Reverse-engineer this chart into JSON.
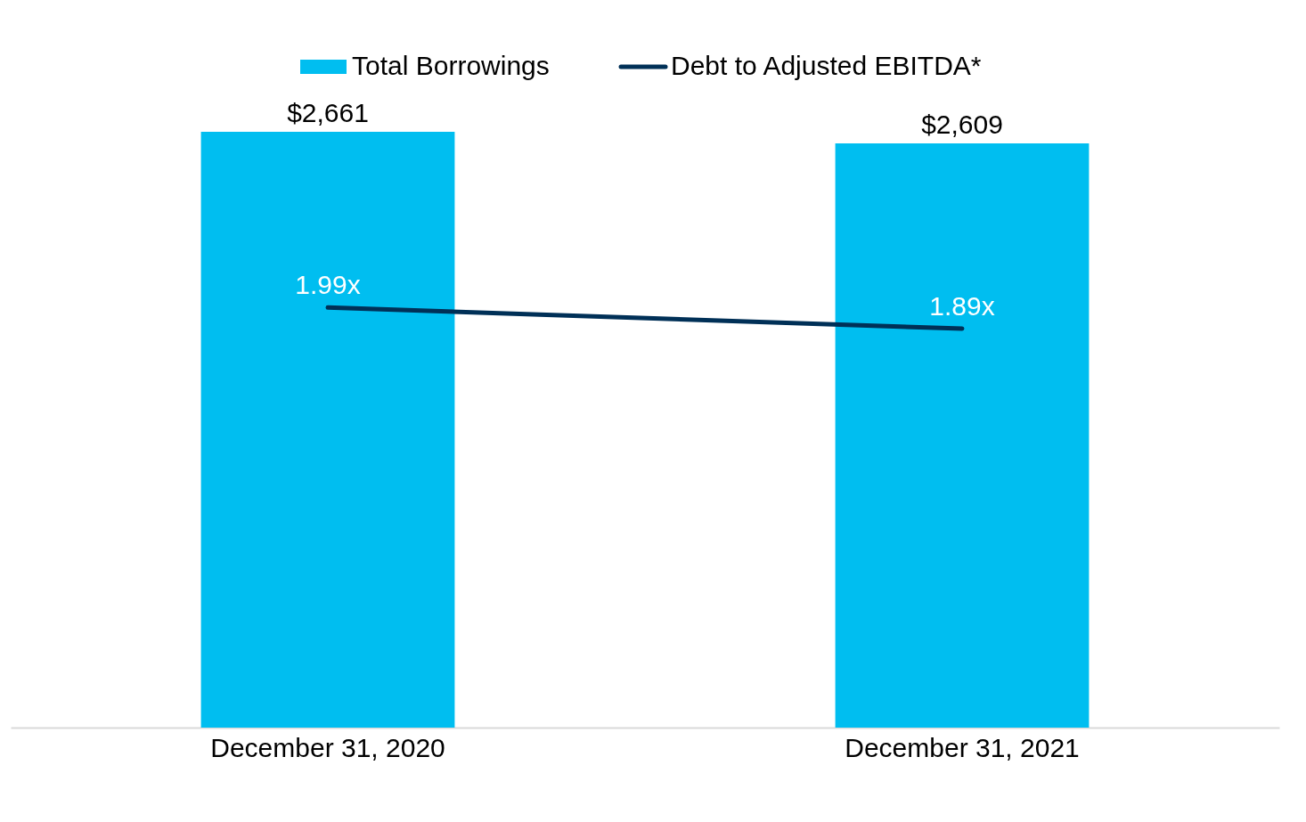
{
  "chart_data": {
    "type": "bar",
    "categories": [
      "December 31, 2020",
      "December 31, 2021"
    ],
    "series": [
      {
        "name": "Total Borrowings",
        "color": "#00bef0",
        "values": [
          2661,
          2609
        ],
        "value_labels": [
          "$2,661",
          "$2,609"
        ]
      },
      {
        "name": "Debt to Adjusted EBITDA*",
        "type": "line",
        "axis": "y2",
        "color": "#003057",
        "values": [
          1.99,
          1.89
        ],
        "value_labels": [
          "1.99x",
          "1.89x"
        ]
      }
    ],
    "tick_labels": "x",
    "legend": "top",
    "grid": false,
    "marker": "none",
    "line_style": "solid"
  }
}
